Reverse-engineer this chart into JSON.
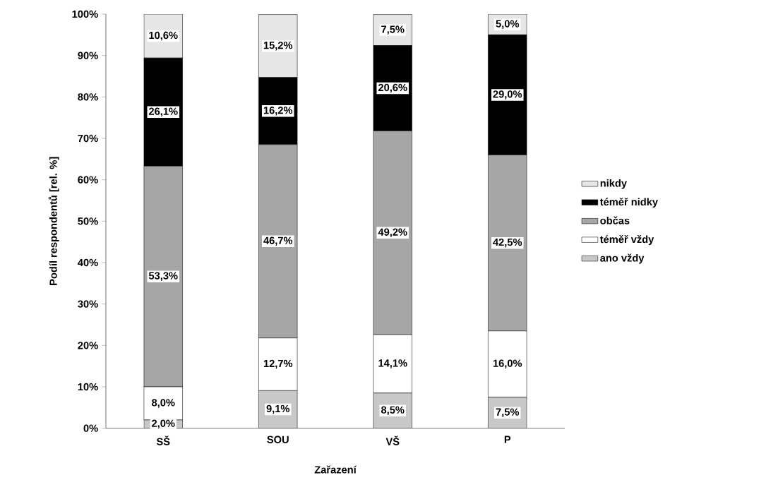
{
  "chart_data": {
    "type": "bar",
    "stacked": true,
    "xlabel": "Zařazení",
    "ylabel": "Podíl respondentů  [rel. %]",
    "categories": [
      "SŠ",
      "SOU",
      "VŠ",
      "P"
    ],
    "series": [
      {
        "name": "ano vždy",
        "color": "#c8c8c8",
        "values": [
          2.0,
          9.1,
          8.5,
          7.5
        ],
        "value_labels": [
          "2,0%",
          "9,1%",
          "8,5%",
          "7,5%"
        ]
      },
      {
        "name": "téměř vždy",
        "color": "#ffffff",
        "values": [
          8.0,
          12.7,
          14.1,
          16.0
        ],
        "value_labels": [
          "8,0%",
          "12,7%",
          "14,1%",
          "16,0%"
        ]
      },
      {
        "name": "občas",
        "color": "#a6a6a6",
        "values": [
          53.3,
          46.7,
          49.2,
          42.5
        ],
        "value_labels": [
          "53,3%",
          "46,7%",
          "49,2%",
          "42,5%"
        ]
      },
      {
        "name": "téměř nidky",
        "color": "#000000",
        "values": [
          26.1,
          16.2,
          20.6,
          29.0
        ],
        "value_labels": [
          "26,1%",
          "16,2%",
          "20,6%",
          "29,0%"
        ]
      },
      {
        "name": "nikdy",
        "color": "#e6e6e6",
        "values": [
          10.6,
          15.2,
          7.5,
          5.0
        ],
        "value_labels": [
          "10,6%",
          "15,2%",
          "7,5%",
          "5,0%"
        ]
      }
    ],
    "ylim": [
      0,
      100
    ],
    "yticks": [
      {
        "value": 0,
        "label": "0%"
      },
      {
        "value": 10,
        "label": "10%"
      },
      {
        "value": 20,
        "label": "20%"
      },
      {
        "value": 30,
        "label": "30%"
      },
      {
        "value": 40,
        "label": "40%"
      },
      {
        "value": 50,
        "label": "50%"
      },
      {
        "value": 60,
        "label": "60%"
      },
      {
        "value": 70,
        "label": "70%"
      },
      {
        "value": 80,
        "label": "80%"
      },
      {
        "value": 90,
        "label": "90%"
      },
      {
        "value": 100,
        "label": "100%"
      }
    ],
    "grid": false,
    "legend": "right"
  }
}
